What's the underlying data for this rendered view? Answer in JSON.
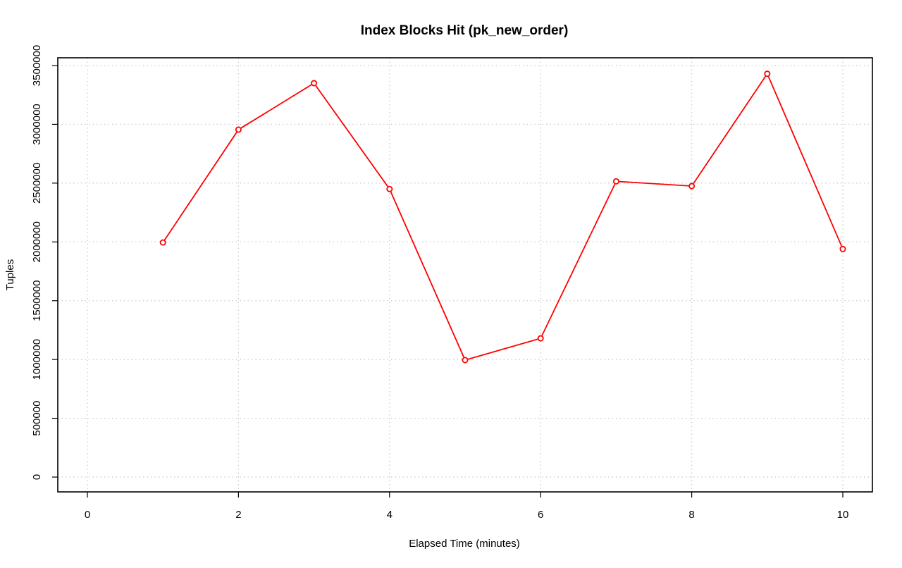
{
  "chart_data": {
    "type": "line",
    "title": "Index Blocks Hit (pk_new_order)",
    "xlabel": "Elapsed Time (minutes)",
    "ylabel": "Tuples",
    "xlim": [
      0,
      10
    ],
    "ylim": [
      0,
      3500000
    ],
    "x_ticks": [
      "0",
      "2",
      "4",
      "6",
      "8",
      "10"
    ],
    "y_ticks": [
      "0",
      "500000",
      "1000000",
      "1500000",
      "2000000",
      "2500000",
      "3000000",
      "3500000"
    ],
    "grid": true,
    "series": [
      {
        "color": "#ff0000",
        "marker": "open-circle",
        "x": [
          1,
          2,
          3,
          4,
          5,
          6,
          7,
          8,
          9,
          10
        ],
        "y": [
          1995000,
          2955000,
          3350000,
          2450000,
          995000,
          1180000,
          2515000,
          2475000,
          3430000,
          1940000
        ]
      }
    ]
  }
}
